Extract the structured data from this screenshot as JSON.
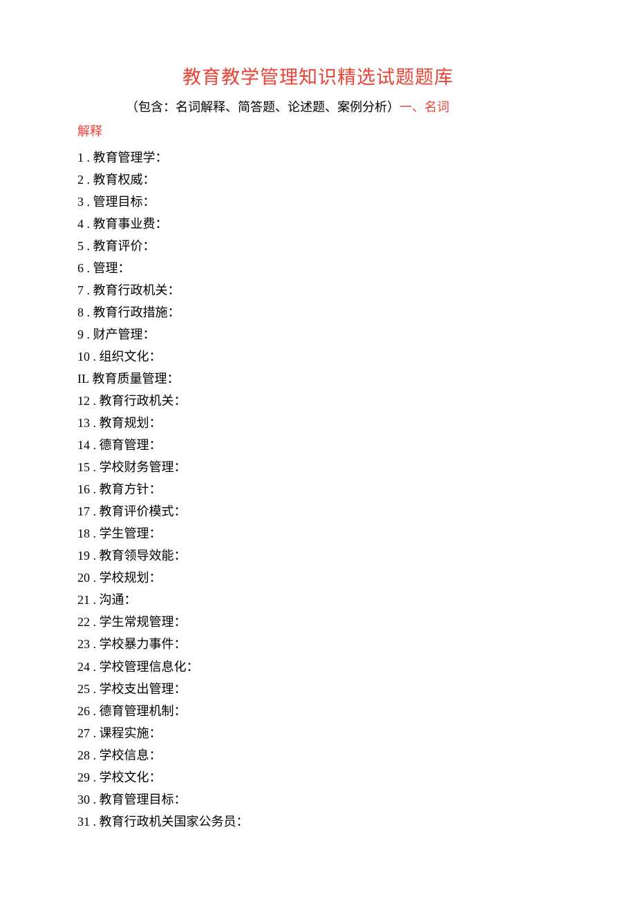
{
  "title": "教育教学管理知识精选试题题库",
  "subtitle_black": "（包含：名词解释、简答题、论述题、案例分析）",
  "subtitle_red_inline": "一、名词",
  "subtitle_red_continue": "解释",
  "items": [
    {
      "num": "1",
      "text": " . 教育管理学："
    },
    {
      "num": "2",
      "text": " . 教育权威："
    },
    {
      "num": "3",
      "text": " . 管理目标："
    },
    {
      "num": "4",
      "text": " . 教育事业费："
    },
    {
      "num": "5",
      "text": " . 教育评价："
    },
    {
      "num": "6",
      "text": " . 管理："
    },
    {
      "num": "7",
      "text": " . 教育行政机关："
    },
    {
      "num": "8",
      "text": " . 教育行政措施："
    },
    {
      "num": "9",
      "text": " . 财产管理："
    },
    {
      "num": "10",
      "text": " . 组织文化："
    },
    {
      "num": "IL",
      "text": " 教育质量管理："
    },
    {
      "num": "12",
      "text": " . 教育行政机关："
    },
    {
      "num": "13",
      "text": " . 教育规划："
    },
    {
      "num": "14",
      "text": " . 德育管理："
    },
    {
      "num": "15",
      "text": " . 学校财务管理："
    },
    {
      "num": "16",
      "text": " . 教育方针："
    },
    {
      "num": "17",
      "text": " . 教育评价模式："
    },
    {
      "num": "18",
      "text": " . 学生管理："
    },
    {
      "num": "19",
      "text": " . 教育领导效能："
    },
    {
      "num": "20",
      "text": " . 学校规划："
    },
    {
      "num": "21",
      "text": " . 沟通："
    },
    {
      "num": "22",
      "text": " . 学生常规管理："
    },
    {
      "num": "23",
      "text": " . 学校暴力事件："
    },
    {
      "num": "24",
      "text": " . 学校管理信息化："
    },
    {
      "num": "25",
      "text": " . 学校支出管理："
    },
    {
      "num": "26",
      "text": " . 德育管理机制："
    },
    {
      "num": "27",
      "text": " . 课程实施："
    },
    {
      "num": "28",
      "text": " . 学校信息："
    },
    {
      "num": "29",
      "text": " . 学校文化："
    },
    {
      "num": "30",
      "text": " . 教育管理目标："
    },
    {
      "num": "31",
      "text": " . 教育行政机关国家公务员："
    }
  ]
}
